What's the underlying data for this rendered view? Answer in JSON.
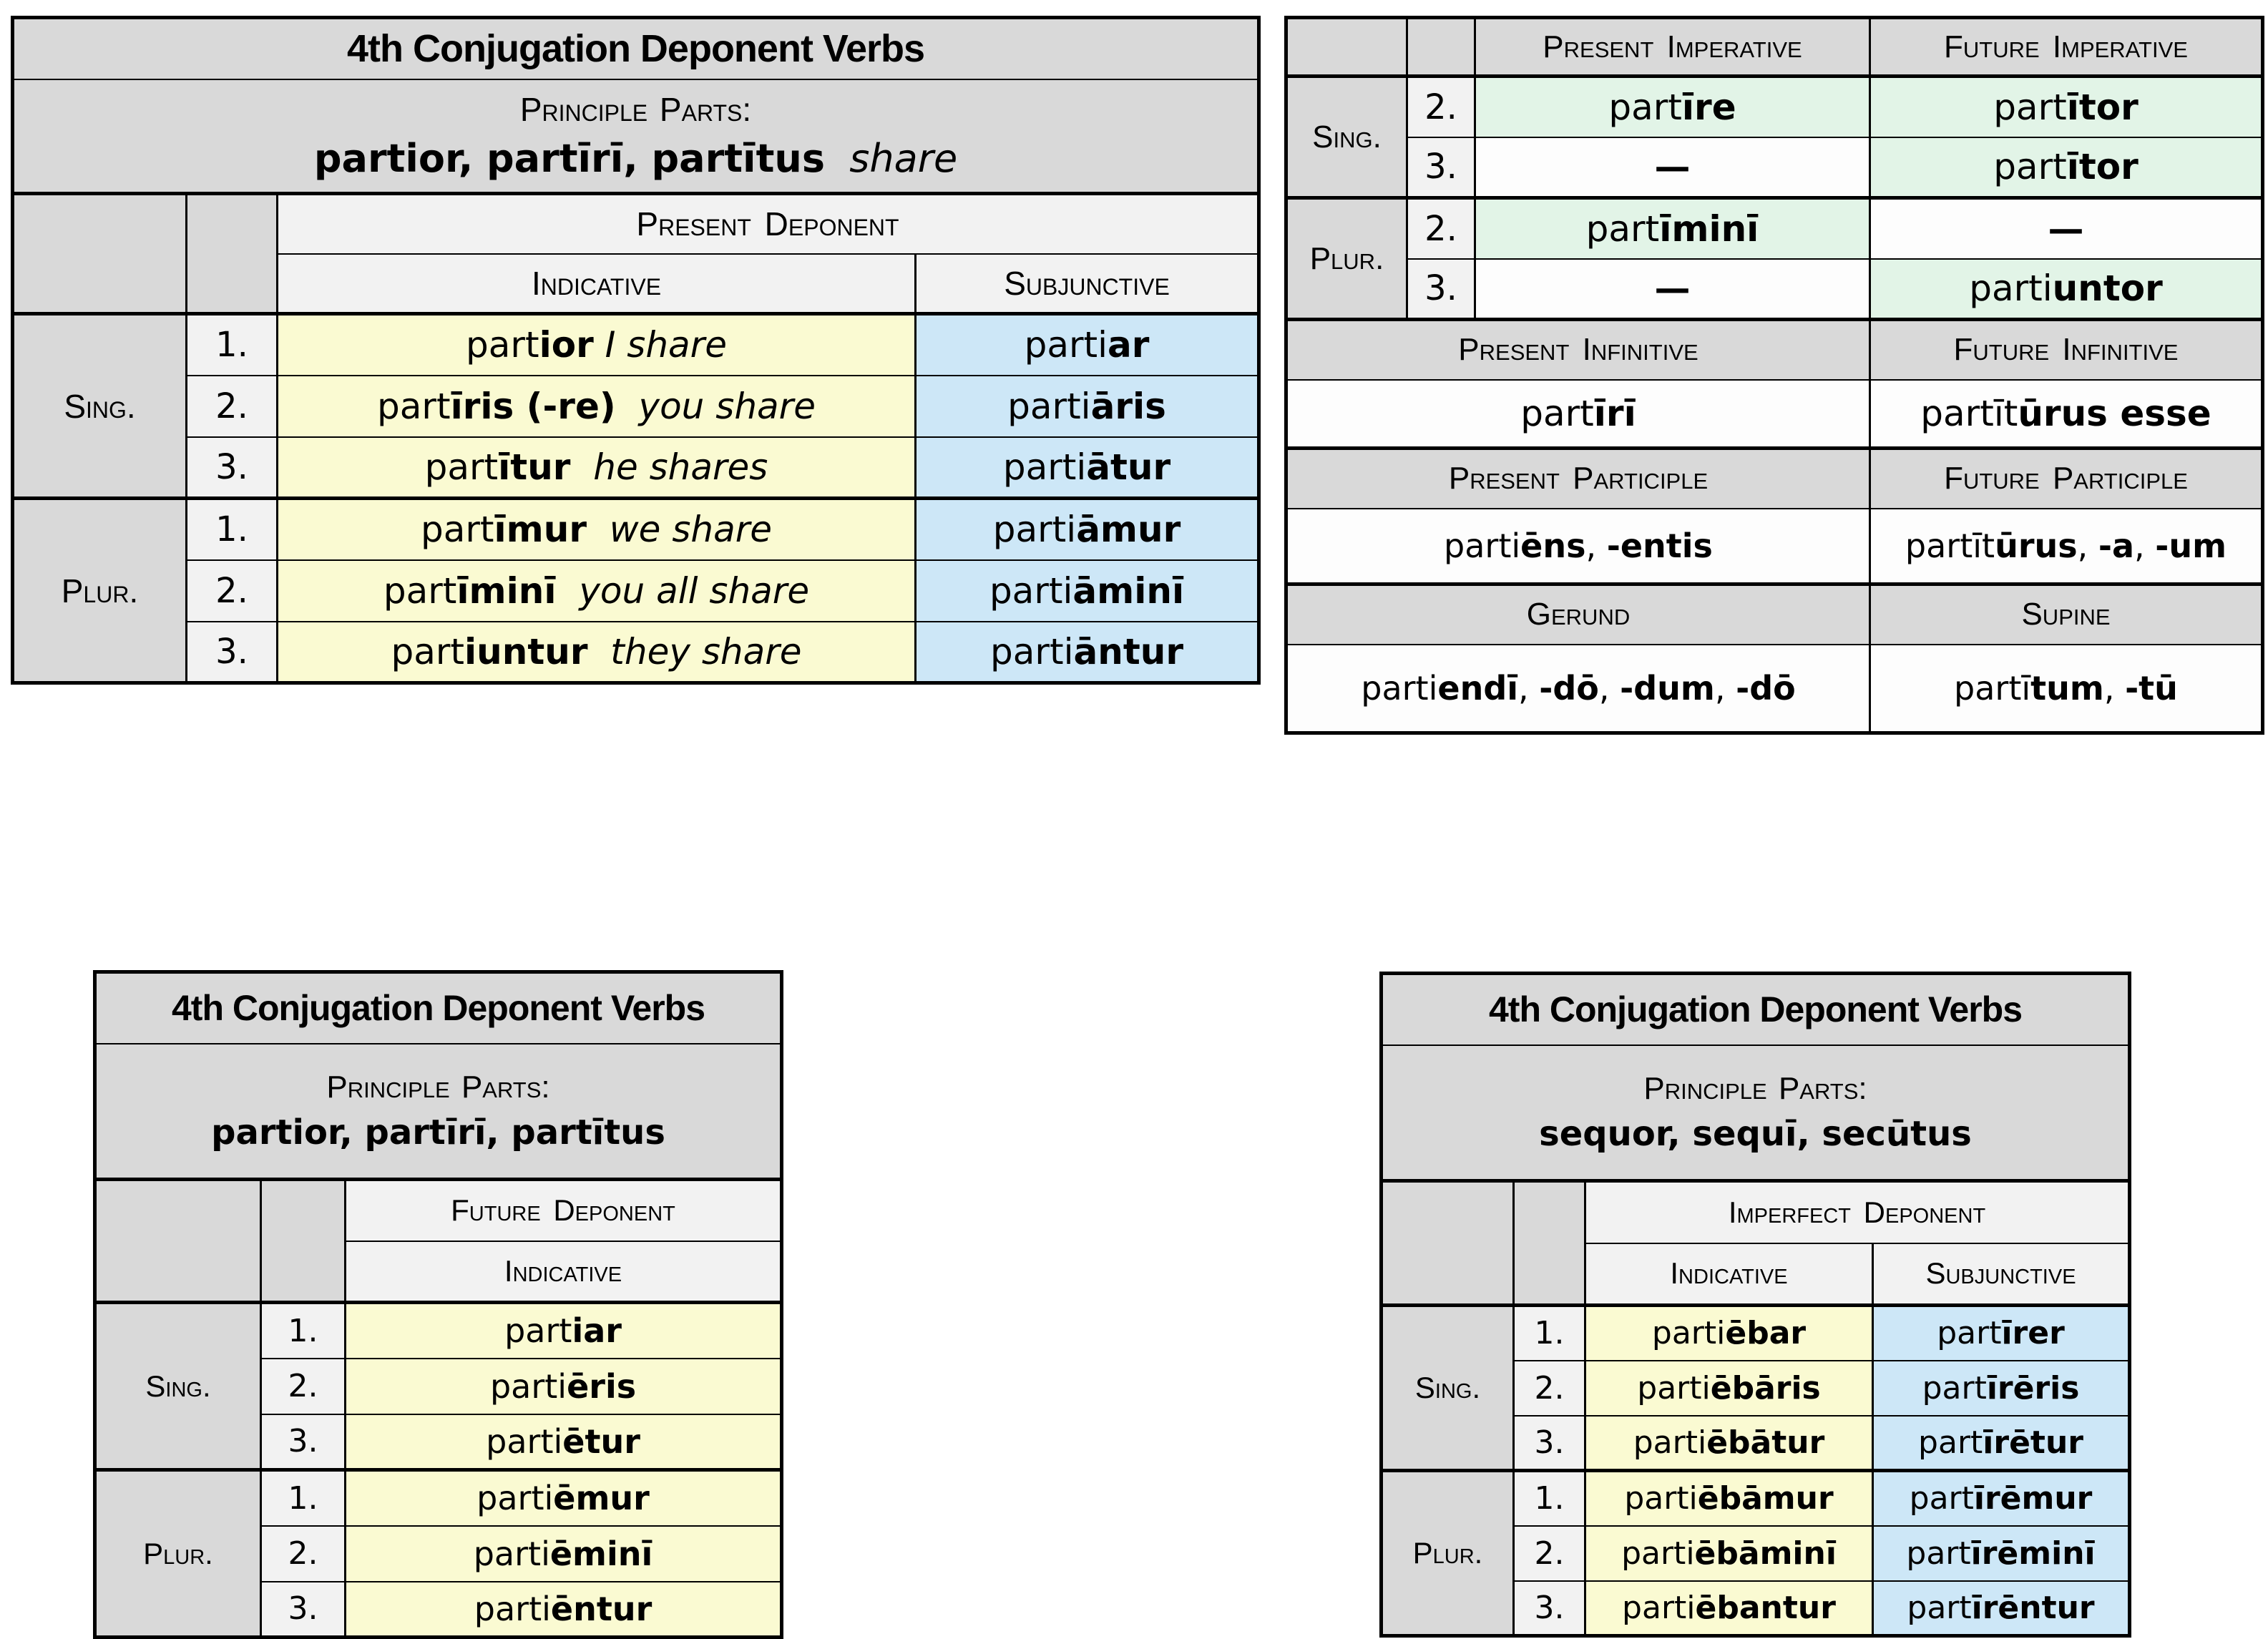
{
  "colors": {
    "header_gray": "#d9d9d9",
    "subheader_gray": "#f2f2f2",
    "number_col": "#f2f2f2",
    "yellow": "#fafad2",
    "blue": "#cde7f7",
    "green": "#e2f4e7",
    "white_cell": "#fdfdfd",
    "border": "#000000",
    "background": "#ffffff"
  },
  "table1": {
    "title": "4th Conjugation Deponent Verbs",
    "pp_label": "Principle Parts:",
    "pp_value": [
      [
        "b",
        "partior, partīrī, partītus"
      ],
      [
        "i",
        "  share"
      ]
    ],
    "tense": "Present Deponent",
    "mood_ind": "Indicative",
    "mood_subj": "Subjunctive",
    "sing": "Sing.",
    "plur": "Plur.",
    "rows": [
      {
        "num": "1.",
        "ind": [
          [
            "n",
            "part"
          ],
          [
            "b",
            "ior"
          ],
          [
            "i",
            " I share"
          ]
        ],
        "subj": [
          [
            "n",
            "parti"
          ],
          [
            "b",
            "ar"
          ]
        ]
      },
      {
        "num": "2.",
        "ind": [
          [
            "n",
            "part"
          ],
          [
            "b",
            "īris (-re)"
          ],
          [
            "i",
            "  you share"
          ]
        ],
        "subj": [
          [
            "n",
            "parti"
          ],
          [
            "b",
            "āris"
          ]
        ]
      },
      {
        "num": "3.",
        "ind": [
          [
            "n",
            "part"
          ],
          [
            "b",
            "ītur"
          ],
          [
            "i",
            "  he shares"
          ]
        ],
        "subj": [
          [
            "n",
            "parti"
          ],
          [
            "b",
            "ātur"
          ]
        ]
      },
      {
        "num": "1.",
        "ind": [
          [
            "n",
            "part"
          ],
          [
            "b",
            "īmur"
          ],
          [
            "i",
            "  we share"
          ]
        ],
        "subj": [
          [
            "n",
            "parti"
          ],
          [
            "b",
            "āmur"
          ]
        ]
      },
      {
        "num": "2.",
        "ind": [
          [
            "n",
            "part"
          ],
          [
            "b",
            "īminī"
          ],
          [
            "i",
            "  you all share"
          ]
        ],
        "subj": [
          [
            "n",
            "parti"
          ],
          [
            "b",
            "āminī"
          ]
        ]
      },
      {
        "num": "3.",
        "ind": [
          [
            "n",
            "part"
          ],
          [
            "b",
            "iuntur"
          ],
          [
            "i",
            "  they share"
          ]
        ],
        "subj": [
          [
            "n",
            "parti"
          ],
          [
            "b",
            "āntur"
          ]
        ]
      }
    ]
  },
  "table2": {
    "col_present": "Present Imperative",
    "col_future": "Future Imperative",
    "sing": "Sing.",
    "plur": "Plur.",
    "rows": [
      {
        "num": "2.",
        "pres": [
          [
            "n",
            "part"
          ],
          [
            "b",
            "īre"
          ]
        ],
        "fut": [
          [
            "n",
            "part"
          ],
          [
            "b",
            "ītor"
          ]
        ]
      },
      {
        "num": "3.",
        "pres": [
          [
            "b",
            "—"
          ]
        ],
        "fut": [
          [
            "n",
            "part"
          ],
          [
            "b",
            "ītor"
          ]
        ]
      },
      {
        "num": "2.",
        "pres": [
          [
            "n",
            "part"
          ],
          [
            "b",
            "īminī"
          ]
        ],
        "fut": [
          [
            "b",
            "—"
          ]
        ]
      },
      {
        "num": "3.",
        "pres": [
          [
            "b",
            "—"
          ]
        ],
        "fut": [
          [
            "n",
            "parti"
          ],
          [
            "b",
            "untor"
          ]
        ]
      }
    ],
    "sections": [
      {
        "left_h": "Present Infinitive",
        "right_h": "Future Infinitive",
        "left_v": [
          [
            "n",
            "part"
          ],
          [
            "b",
            "īrī"
          ]
        ],
        "right_v": [
          [
            "n",
            "partīt"
          ],
          [
            "b",
            "ūrus esse"
          ]
        ]
      },
      {
        "left_h": "Present Participle",
        "right_h": "Future Participle",
        "left_v": [
          [
            "n",
            "parti"
          ],
          [
            "b",
            "ēns"
          ],
          [
            "n",
            ", "
          ],
          [
            "b",
            "-entis"
          ]
        ],
        "right_v": [
          [
            "n",
            "partīt"
          ],
          [
            "b",
            "ūrus"
          ],
          [
            "n",
            ", "
          ],
          [
            "b",
            "-a"
          ],
          [
            "n",
            ", "
          ],
          [
            "b",
            "-um"
          ]
        ]
      },
      {
        "left_h": "Gerund",
        "right_h": "Supine",
        "left_v": [
          [
            "n",
            "parti"
          ],
          [
            "b",
            "endī"
          ],
          [
            "n",
            ", "
          ],
          [
            "b",
            "-dō"
          ],
          [
            "n",
            ", "
          ],
          [
            "b",
            "-dum"
          ],
          [
            "n",
            ", "
          ],
          [
            "b",
            "-dō"
          ]
        ],
        "right_v": [
          [
            "n",
            "partī"
          ],
          [
            "b",
            "tum"
          ],
          [
            "n",
            ", "
          ],
          [
            "b",
            "-tū"
          ]
        ]
      }
    ]
  },
  "table3": {
    "title": "4th Conjugation Deponent Verbs",
    "pp_label": "Principle Parts:",
    "pp_value": [
      [
        "b",
        "partior, partīrī, partītus"
      ]
    ],
    "tense": "Future Deponent",
    "mood_ind": "Indicative",
    "sing": "Sing.",
    "plur": "Plur.",
    "rows": [
      {
        "num": "1.",
        "ind": [
          [
            "n",
            "part"
          ],
          [
            "b",
            "iar"
          ]
        ]
      },
      {
        "num": "2.",
        "ind": [
          [
            "n",
            "parti"
          ],
          [
            "b",
            "ēris"
          ]
        ]
      },
      {
        "num": "3.",
        "ind": [
          [
            "n",
            "parti"
          ],
          [
            "b",
            "ētur"
          ]
        ]
      },
      {
        "num": "1.",
        "ind": [
          [
            "n",
            "parti"
          ],
          [
            "b",
            "ēmur"
          ]
        ]
      },
      {
        "num": "2.",
        "ind": [
          [
            "n",
            "parti"
          ],
          [
            "b",
            "ēminī"
          ]
        ]
      },
      {
        "num": "3.",
        "ind": [
          [
            "n",
            "parti"
          ],
          [
            "b",
            "ēntur"
          ]
        ]
      }
    ]
  },
  "table4": {
    "title": "4th Conjugation Deponent Verbs",
    "pp_label": "Principle Parts:",
    "pp_value": [
      [
        "b",
        "sequor, sequī, secūtus"
      ]
    ],
    "tense": "Imperfect Deponent",
    "mood_ind": "Indicative",
    "mood_subj": "Subjunctive",
    "sing": "Sing.",
    "plur": "Plur.",
    "rows": [
      {
        "num": "1.",
        "ind": [
          [
            "n",
            "parti"
          ],
          [
            "b",
            "ēbar"
          ]
        ],
        "subj": [
          [
            "n",
            "part"
          ],
          [
            "b",
            "īrer"
          ]
        ]
      },
      {
        "num": "2.",
        "ind": [
          [
            "n",
            "parti"
          ],
          [
            "b",
            "ēbāris"
          ]
        ],
        "subj": [
          [
            "n",
            "part"
          ],
          [
            "b",
            "īrēris"
          ]
        ]
      },
      {
        "num": "3.",
        "ind": [
          [
            "n",
            "parti"
          ],
          [
            "b",
            "ēbātur"
          ]
        ],
        "subj": [
          [
            "n",
            "part"
          ],
          [
            "b",
            "īrētur"
          ]
        ]
      },
      {
        "num": "1.",
        "ind": [
          [
            "n",
            "parti"
          ],
          [
            "b",
            "ēbāmur"
          ]
        ],
        "subj": [
          [
            "n",
            "part"
          ],
          [
            "b",
            "īrēmur"
          ]
        ]
      },
      {
        "num": "2.",
        "ind": [
          [
            "n",
            "parti"
          ],
          [
            "b",
            "ēbāminī"
          ]
        ],
        "subj": [
          [
            "n",
            "part"
          ],
          [
            "b",
            "īrēminī"
          ]
        ]
      },
      {
        "num": "3.",
        "ind": [
          [
            "n",
            "parti"
          ],
          [
            "b",
            "ēbantur"
          ]
        ],
        "subj": [
          [
            "n",
            "part"
          ],
          [
            "b",
            "īrēntur"
          ]
        ]
      }
    ]
  }
}
